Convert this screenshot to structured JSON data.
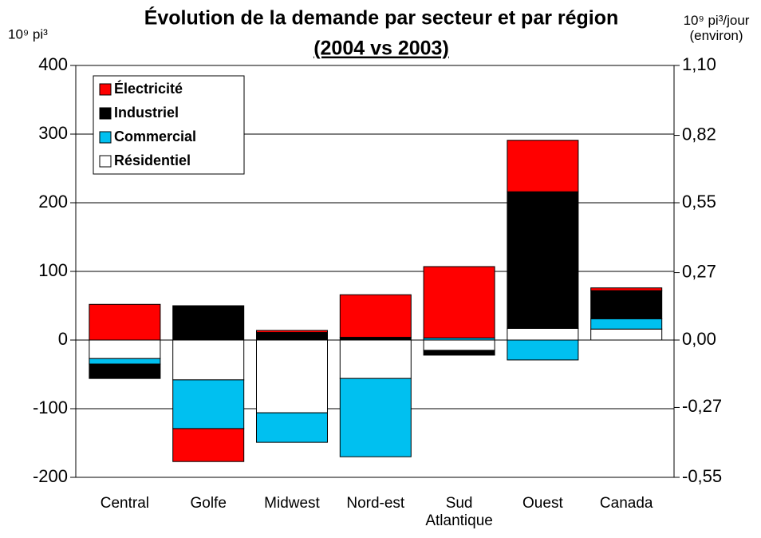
{
  "chart_data": {
    "type": "stacked_bar",
    "title": "Évolution de la demande par secteur et par région",
    "subtitle": "(2004 vs 2003)",
    "y_label": "10⁹ pi³",
    "y2_label": "10⁹ pi³/jour (environ)",
    "categories": [
      "Central",
      "Golfe",
      "Midwest",
      "Nord-est",
      "Sud Atlantique",
      "Ouest",
      "Canada"
    ],
    "series": [
      {
        "name": "Résidentiel",
        "color": "#ffffff",
        "values": [
          -27,
          -58,
          -106,
          -56,
          -15,
          17,
          16
        ]
      },
      {
        "name": "Commercial",
        "color": "#00c0f0",
        "values": [
          -8,
          -71,
          -43,
          -114,
          3,
          -29,
          15
        ]
      },
      {
        "name": "Industriel",
        "color": "#000000",
        "values": [
          -21,
          50,
          11,
          4,
          -7,
          199,
          41
        ]
      },
      {
        "name": "Électricité",
        "color": "#ff0000",
        "values": [
          52,
          -48,
          3,
          62,
          104,
          75,
          4
        ]
      }
    ],
    "ylim": [
      -200,
      400
    ],
    "yticks": [
      -200,
      -100,
      0,
      100,
      200,
      300,
      400
    ],
    "y2lim": [
      -0.55,
      1.1
    ],
    "y2ticks": [
      {
        "value": -0.55,
        "label": "-0,55"
      },
      {
        "value": -0.27,
        "label": "-0,27"
      },
      {
        "value": 0,
        "label": "0,00"
      },
      {
        "value": 0.27,
        "label": "0,27"
      },
      {
        "value": 0.55,
        "label": "0,55"
      },
      {
        "value": 0.82,
        "label": "0,82"
      },
      {
        "value": 1.1,
        "label": "1,10"
      }
    ],
    "grid": true,
    "legend": "upper left"
  }
}
